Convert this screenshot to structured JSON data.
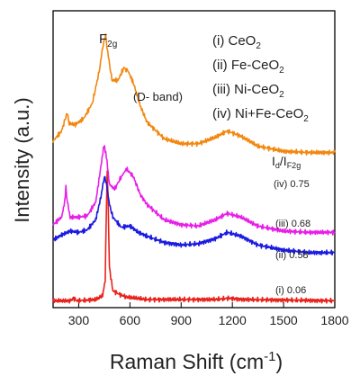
{
  "chart_data": {
    "type": "line",
    "xlabel": "Raman Shift (cm",
    "xlabel_sup": "-1",
    "xlabel_close": ")",
    "ylabel": "Intensity (a.u.)",
    "xlim": [
      150,
      1800
    ],
    "xticks": [
      300,
      600,
      900,
      1200,
      1500,
      1800
    ],
    "legend": [
      "(i) CeO",
      "(ii) Fe-CeO",
      "(iii) Ni-CeO",
      "(iv) Ni+Fe-CeO"
    ],
    "legend_sub": "2",
    "peak_label_main": "F",
    "peak_label_sub": "2g",
    "band_label": "(D- band)",
    "ratio_header_main": "I",
    "ratio_header_sub1": "d",
    "ratio_header_sep": "/I",
    "ratio_header_sub2": "F2g",
    "series": [
      {
        "label": "(i) 0.06",
        "color": "#e8221b",
        "points": [
          [
            150,
            4
          ],
          [
            250,
            4
          ],
          [
            270,
            6
          ],
          [
            290,
            4
          ],
          [
            400,
            5
          ],
          [
            440,
            8
          ],
          [
            455,
            20
          ],
          [
            462,
            75
          ],
          [
            467,
            108
          ],
          [
            472,
            85
          ],
          [
            480,
            30
          ],
          [
            500,
            12
          ],
          [
            540,
            9
          ],
          [
            580,
            7
          ],
          [
            700,
            5
          ],
          [
            1100,
            5
          ],
          [
            1180,
            6
          ],
          [
            1260,
            5
          ],
          [
            1800,
            4
          ]
        ]
      },
      {
        "label": "(ii) 0.58",
        "color": "#1a1ae0",
        "points": [
          [
            150,
            52
          ],
          [
            200,
            56
          ],
          [
            250,
            59
          ],
          [
            300,
            58
          ],
          [
            350,
            60
          ],
          [
            400,
            68
          ],
          [
            430,
            86
          ],
          [
            450,
            102
          ],
          [
            462,
            97
          ],
          [
            480,
            80
          ],
          [
            500,
            70
          ],
          [
            550,
            62
          ],
          [
            600,
            63
          ],
          [
            650,
            58
          ],
          [
            700,
            55
          ],
          [
            800,
            50
          ],
          [
            900,
            48
          ],
          [
            1000,
            49
          ],
          [
            1100,
            53
          ],
          [
            1170,
            58
          ],
          [
            1250,
            55
          ],
          [
            1350,
            48
          ],
          [
            1500,
            44
          ],
          [
            1650,
            42
          ],
          [
            1800,
            42
          ]
        ]
      },
      {
        "label": "(iii) 0.68",
        "color": "#e81ee8",
        "points": [
          [
            150,
            64
          ],
          [
            200,
            70
          ],
          [
            218,
            82
          ],
          [
            225,
            94
          ],
          [
            233,
            82
          ],
          [
            250,
            70
          ],
          [
            300,
            70
          ],
          [
            350,
            71
          ],
          [
            400,
            82
          ],
          [
            430,
            110
          ],
          [
            448,
            127
          ],
          [
            462,
            118
          ],
          [
            480,
            96
          ],
          [
            510,
            92
          ],
          [
            550,
            102
          ],
          [
            580,
            108
          ],
          [
            620,
            102
          ],
          [
            660,
            88
          ],
          [
            700,
            80
          ],
          [
            800,
            68
          ],
          [
            900,
            64
          ],
          [
            1000,
            63
          ],
          [
            1100,
            68
          ],
          [
            1170,
            73
          ],
          [
            1250,
            70
          ],
          [
            1350,
            63
          ],
          [
            1500,
            59
          ],
          [
            1650,
            58
          ],
          [
            1800,
            58
          ]
        ]
      },
      {
        "label": "(iv) 0.75",
        "color": "#f2870f",
        "points": [
          [
            150,
            130
          ],
          [
            200,
            138
          ],
          [
            220,
            147
          ],
          [
            232,
            152
          ],
          [
            245,
            144
          ],
          [
            280,
            143
          ],
          [
            330,
            148
          ],
          [
            380,
            160
          ],
          [
            420,
            185
          ],
          [
            445,
            208
          ],
          [
            458,
            213
          ],
          [
            470,
            200
          ],
          [
            495,
            178
          ],
          [
            530,
            178
          ],
          [
            565,
            188
          ],
          [
            590,
            185
          ],
          [
            620,
            176
          ],
          [
            660,
            158
          ],
          [
            700,
            145
          ],
          [
            800,
            132
          ],
          [
            900,
            128
          ],
          [
            1000,
            128
          ],
          [
            1100,
            133
          ],
          [
            1170,
            138
          ],
          [
            1250,
            134
          ],
          [
            1350,
            126
          ],
          [
            1500,
            122
          ],
          [
            1650,
            121
          ],
          [
            1800,
            121
          ]
        ]
      }
    ]
  }
}
